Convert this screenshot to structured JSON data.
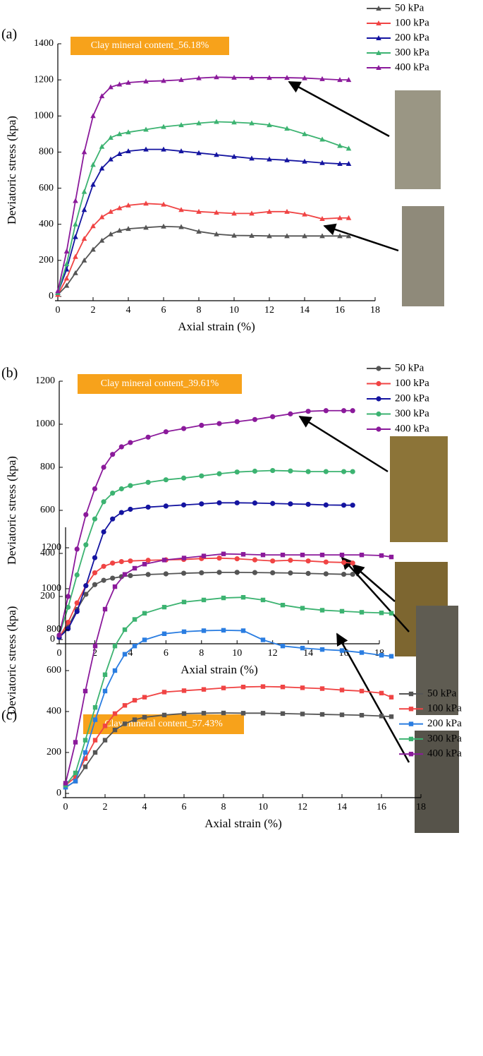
{
  "chart_data": [
    {
      "type": "line",
      "panel_label": "(a)",
      "annotation": "Clay mineral content_56.18%",
      "x_label": "Axial strain (%)",
      "y_label": "Deviatoric stress (kpa)",
      "marker": "triangle",
      "x": [
        0,
        0.5,
        1,
        1.5,
        2,
        2.5,
        3,
        3.5,
        4,
        5,
        6,
        7,
        8,
        9,
        10,
        11,
        12,
        13,
        14,
        15,
        16,
        16.5
      ],
      "xlim": [
        0,
        18
      ],
      "xticks": [
        0,
        2,
        4,
        6,
        8,
        10,
        12,
        14,
        16,
        18
      ],
      "ylim": [
        0,
        1400
      ],
      "yticks": [
        0,
        200,
        400,
        600,
        800,
        1000,
        1200,
        1400
      ],
      "series": [
        {
          "name": "50 kPa",
          "color": "#555555",
          "values": [
            10,
            60,
            130,
            200,
            260,
            310,
            345,
            365,
            375,
            382,
            388,
            385,
            360,
            345,
            338,
            337,
            335,
            335,
            335,
            335,
            335,
            335
          ]
        },
        {
          "name": "100 kPa",
          "color": "#f04444",
          "values": [
            10,
            100,
            220,
            320,
            390,
            440,
            470,
            490,
            505,
            515,
            510,
            480,
            470,
            465,
            460,
            460,
            470,
            470,
            455,
            430,
            435,
            435
          ]
        },
        {
          "name": "200 kPa",
          "color": "#1414a0",
          "values": [
            20,
            150,
            330,
            480,
            620,
            710,
            760,
            790,
            805,
            815,
            815,
            805,
            795,
            785,
            775,
            765,
            760,
            755,
            748,
            740,
            735,
            735
          ]
        },
        {
          "name": "300 kPa",
          "color": "#3cb371",
          "values": [
            20,
            180,
            400,
            580,
            730,
            830,
            880,
            900,
            910,
            925,
            940,
            950,
            960,
            968,
            965,
            960,
            950,
            930,
            900,
            870,
            835,
            820
          ]
        },
        {
          "name": "400 kPa",
          "color": "#8b1a9b",
          "values": [
            30,
            250,
            530,
            800,
            1000,
            1110,
            1160,
            1175,
            1185,
            1192,
            1195,
            1200,
            1210,
            1215,
            1213,
            1212,
            1212,
            1212,
            1210,
            1205,
            1200,
            1200
          ]
        }
      ]
    },
    {
      "type": "line",
      "panel_label": "(b)",
      "annotation": "Clay mineral content_39.61%",
      "x_label": "Axial strain (%)",
      "y_label": "Deviatoric stress (kpa)",
      "marker": "circle",
      "x": [
        0,
        0.5,
        1,
        1.5,
        2,
        2.5,
        3,
        3.5,
        4,
        5,
        6,
        7,
        8,
        9,
        10,
        11,
        12,
        13,
        14,
        15,
        16,
        16.5
      ],
      "xlim": [
        0,
        18
      ],
      "xticks": [
        0,
        2,
        4,
        6,
        8,
        10,
        12,
        14,
        16,
        18
      ],
      "ylim": [
        0,
        1200
      ],
      "yticks": [
        0,
        200,
        400,
        600,
        800,
        1000,
        1200
      ],
      "series": [
        {
          "name": "50 kPa",
          "color": "#555555",
          "values": [
            10,
            60,
            140,
            210,
            255,
            275,
            285,
            292,
            297,
            302,
            305,
            308,
            310,
            312,
            312,
            311,
            310,
            309,
            307,
            305,
            303,
            303
          ]
        },
        {
          "name": "100 kPa",
          "color": "#f04444",
          "values": [
            10,
            80,
            170,
            250,
            310,
            340,
            355,
            362,
            365,
            368,
            370,
            372,
            376,
            378,
            375,
            370,
            365,
            368,
            365,
            360,
            358,
            355
          ]
        },
        {
          "name": "200 kPa",
          "color": "#1414a0",
          "values": [
            10,
            50,
            130,
            250,
            380,
            500,
            560,
            590,
            605,
            615,
            620,
            625,
            630,
            635,
            635,
            634,
            632,
            630,
            628,
            625,
            624,
            624
          ]
        },
        {
          "name": "300 kPa",
          "color": "#3cb371",
          "values": [
            20,
            150,
            300,
            440,
            560,
            640,
            680,
            700,
            715,
            730,
            742,
            750,
            760,
            770,
            778,
            782,
            785,
            783,
            780,
            780,
            780,
            780
          ]
        },
        {
          "name": "400 kPa",
          "color": "#8b1a9b",
          "values": [
            20,
            200,
            420,
            580,
            700,
            800,
            860,
            895,
            915,
            940,
            965,
            980,
            995,
            1003,
            1012,
            1022,
            1035,
            1048,
            1060,
            1063,
            1063,
            1063
          ]
        }
      ]
    },
    {
      "type": "line",
      "panel_label": "(c)",
      "annotation": "Clay mineral content_57.43%",
      "x_label": "Axial strain (%)",
      "y_label": "Deviatoric stress (kpa)",
      "marker": "square",
      "x": [
        0,
        0.5,
        1,
        1.5,
        2,
        2.5,
        3,
        3.5,
        4,
        5,
        6,
        7,
        8,
        9,
        10,
        11,
        12,
        13,
        14,
        15,
        16,
        16.5
      ],
      "xlim": [
        0,
        18
      ],
      "xticks": [
        0,
        2,
        4,
        6,
        8,
        10,
        12,
        14,
        16,
        18
      ],
      "ylim": [
        0,
        1300
      ],
      "yticks": [
        0,
        200,
        400,
        600,
        800,
        1000,
        1200
      ],
      "series": [
        {
          "name": "50 kPa",
          "color": "#555555",
          "values": [
            30,
            60,
            130,
            200,
            260,
            310,
            340,
            360,
            372,
            383,
            390,
            392,
            393,
            392,
            392,
            390,
            388,
            386,
            384,
            382,
            378,
            375
          ]
        },
        {
          "name": "100 kPa",
          "color": "#f04444",
          "values": [
            40,
            80,
            170,
            260,
            330,
            390,
            430,
            455,
            470,
            495,
            502,
            508,
            515,
            520,
            522,
            520,
            516,
            512,
            505,
            500,
            490,
            470
          ]
        },
        {
          "name": "200 kPa",
          "color": "#2a7de1",
          "values": [
            30,
            60,
            200,
            360,
            500,
            600,
            680,
            720,
            750,
            780,
            790,
            795,
            797,
            795,
            750,
            720,
            710,
            703,
            698,
            688,
            675,
            670
          ]
        },
        {
          "name": "300 kPa",
          "color": "#3cb371",
          "values": [
            40,
            100,
            260,
            420,
            580,
            720,
            800,
            850,
            880,
            910,
            935,
            945,
            955,
            958,
            945,
            920,
            905,
            895,
            890,
            885,
            882,
            880
          ]
        },
        {
          "name": "400 kPa",
          "color": "#8b1a9b",
          "values": [
            50,
            250,
            500,
            720,
            900,
            1010,
            1070,
            1100,
            1120,
            1140,
            1150,
            1160,
            1170,
            1168,
            1165,
            1165,
            1165,
            1165,
            1165,
            1165,
            1162,
            1155
          ]
        }
      ]
    }
  ]
}
